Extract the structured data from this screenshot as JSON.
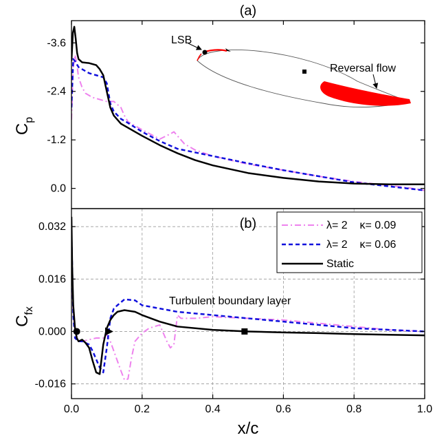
{
  "chart_data": [
    {
      "panel_label": "(a)",
      "type": "line",
      "ylabel": "C",
      "ylabel_sub": "p",
      "ylim": [
        -4.15,
        0.5
      ],
      "y_inverted": true,
      "xlim": [
        0.0,
        1.0
      ],
      "yticks": [
        -3.6,
        -2.4,
        -1.2,
        0.0
      ],
      "ytick_labels": [
        "-3.6",
        "-2.4",
        "-1.2",
        "0.0"
      ],
      "grid": false,
      "series": [
        {
          "name": "λ= 2    κ= 0.09",
          "color": "#ee82ee",
          "dash": "dashdot",
          "x": [
            0.0,
            0.005,
            0.01,
            0.015,
            0.02,
            0.03,
            0.04,
            0.06,
            0.08,
            0.1,
            0.12,
            0.14,
            0.15,
            0.16,
            0.17,
            0.2,
            0.25,
            0.28,
            0.29,
            0.3,
            0.32,
            0.35,
            0.4,
            0.45,
            0.5,
            0.6,
            0.7,
            0.8,
            0.9,
            0.95,
            1.0
          ],
          "y": [
            -1.7,
            -3.0,
            -3.3,
            -3.1,
            -2.75,
            -2.5,
            -2.35,
            -2.25,
            -2.2,
            -2.15,
            -2.15,
            -2.0,
            -1.8,
            -1.65,
            -1.6,
            -1.45,
            -1.22,
            -1.35,
            -1.4,
            -1.3,
            -1.1,
            -0.95,
            -0.8,
            -0.7,
            -0.6,
            -0.45,
            -0.3,
            -0.17,
            -0.07,
            -0.02,
            0.05
          ]
        },
        {
          "name": "λ= 2    κ= 0.06",
          "color": "#1010dd",
          "dash": "dash",
          "x": [
            0.0,
            0.005,
            0.01,
            0.02,
            0.03,
            0.05,
            0.07,
            0.09,
            0.1,
            0.11,
            0.12,
            0.14,
            0.16,
            0.2,
            0.25,
            0.3,
            0.4,
            0.5,
            0.6,
            0.7,
            0.8,
            0.9,
            0.95,
            1.0
          ],
          "y": [
            -2.0,
            -3.2,
            -3.15,
            -3.0,
            -2.95,
            -2.85,
            -2.8,
            -2.75,
            -2.6,
            -2.1,
            -1.9,
            -1.72,
            -1.62,
            -1.4,
            -1.17,
            -0.98,
            -0.8,
            -0.62,
            -0.45,
            -0.3,
            -0.15,
            -0.05,
            0.0,
            0.05
          ]
        },
        {
          "name": "Static",
          "color": "#000000",
          "dash": "solid",
          "x": [
            0.0,
            0.004,
            0.008,
            0.012,
            0.016,
            0.02,
            0.03,
            0.05,
            0.07,
            0.08,
            0.09,
            0.1,
            0.11,
            0.12,
            0.14,
            0.16,
            0.2,
            0.25,
            0.3,
            0.35,
            0.4,
            0.5,
            0.6,
            0.7,
            0.8,
            0.9,
            1.0
          ],
          "y": [
            -3.15,
            -3.85,
            -4.0,
            -3.7,
            -3.35,
            -3.2,
            -3.12,
            -3.1,
            -3.05,
            -2.95,
            -2.8,
            -2.4,
            -2.0,
            -1.8,
            -1.6,
            -1.5,
            -1.3,
            -1.07,
            -0.87,
            -0.7,
            -0.57,
            -0.38,
            -0.26,
            -0.17,
            -0.12,
            -0.1,
            -0.1
          ]
        }
      ],
      "inset": {
        "labels": {
          "lsb": "LSB",
          "reversal": "Reversal flow"
        },
        "colors": {
          "airfoil": "#555555",
          "highlight": "#ff0000"
        }
      }
    },
    {
      "panel_label": "(b)",
      "type": "line",
      "ylabel": "C",
      "ylabel_sub": "fx",
      "xlabel": "x/c",
      "xlim": [
        0.0,
        1.0
      ],
      "ylim": [
        -0.0205,
        0.0375
      ],
      "xticks": [
        0.0,
        0.2,
        0.4,
        0.6,
        0.8,
        1.0
      ],
      "xtick_labels": [
        "0.0",
        "0.2",
        "0.4",
        "0.6",
        "0.8",
        "1.0"
      ],
      "yticks": [
        -0.016,
        0.0,
        0.016,
        0.032
      ],
      "ytick_labels": [
        "-0.016",
        "0.000",
        "0.016",
        "0.032"
      ],
      "grid": true,
      "legend_position": "top-right",
      "annotation": "Turbulent boundary layer",
      "series": [
        {
          "name": "λ= 2    κ= 0.09",
          "color": "#ee82ee",
          "dash": "dashdot",
          "x": [
            0.0,
            0.005,
            0.01,
            0.02,
            0.03,
            0.05,
            0.07,
            0.09,
            0.1,
            0.11,
            0.12,
            0.14,
            0.15,
            0.16,
            0.17,
            0.18,
            0.2,
            0.22,
            0.25,
            0.27,
            0.28,
            0.29,
            0.3,
            0.31,
            0.35,
            0.4,
            0.5,
            0.6,
            0.7,
            0.8,
            0.9,
            1.0
          ],
          "y": [
            0.016,
            0.006,
            0.0,
            -0.003,
            -0.003,
            -0.0025,
            -0.002,
            -0.002,
            -0.001,
            -0.003,
            -0.006,
            -0.012,
            -0.0148,
            -0.0145,
            -0.008,
            -0.003,
            -0.0005,
            0.001,
            0.002,
            -0.003,
            -0.005,
            -0.004,
            0.005,
            0.004,
            0.004,
            0.0045,
            0.004,
            0.0035,
            0.0025,
            0.0015,
            0.0005,
            0.0
          ]
        },
        {
          "name": "λ= 2    κ= 0.06",
          "color": "#1010dd",
          "dash": "dash",
          "x": [
            0.0,
            0.005,
            0.01,
            0.02,
            0.03,
            0.05,
            0.06,
            0.08,
            0.09,
            0.1,
            0.11,
            0.12,
            0.13,
            0.15,
            0.18,
            0.2,
            0.25,
            0.3,
            0.4,
            0.5,
            0.6,
            0.7,
            0.8,
            0.9,
            1.0
          ],
          "y": [
            0.03,
            0.005,
            -0.002,
            -0.003,
            -0.003,
            -0.004,
            -0.006,
            -0.011,
            -0.0125,
            -0.005,
            0.004,
            0.007,
            0.008,
            0.0098,
            0.0095,
            0.008,
            0.007,
            0.006,
            0.005,
            0.004,
            0.003,
            0.002,
            0.001,
            0.0005,
            0.0
          ]
        },
        {
          "name": "Static",
          "color": "#000000",
          "dash": "solid",
          "x": [
            0.0,
            0.002,
            0.005,
            0.01,
            0.015,
            0.02,
            0.03,
            0.04,
            0.05,
            0.06,
            0.07,
            0.08,
            0.09,
            0.1,
            0.11,
            0.12,
            0.13,
            0.15,
            0.18,
            0.2,
            0.25,
            0.3,
            0.4,
            0.5,
            0.6,
            0.7,
            0.8,
            0.9,
            1.0
          ],
          "y": [
            0.035,
            0.02,
            0.008,
            0.001,
            -0.002,
            -0.003,
            -0.0025,
            -0.0035,
            -0.005,
            -0.009,
            -0.0125,
            -0.013,
            -0.004,
            0.001,
            0.0035,
            0.005,
            0.006,
            0.0065,
            0.006,
            0.005,
            0.003,
            0.0015,
            0.0005,
            0.0,
            -0.0003,
            -0.0005,
            -0.0008,
            -0.001,
            -0.0012
          ]
        }
      ],
      "markers": [
        {
          "shape": "circle",
          "x": 0.015,
          "y": 0.0
        },
        {
          "shape": "triangle-right",
          "x": 0.105,
          "y": 0.0
        },
        {
          "shape": "square",
          "x": 0.49,
          "y": 0.0
        }
      ]
    }
  ]
}
